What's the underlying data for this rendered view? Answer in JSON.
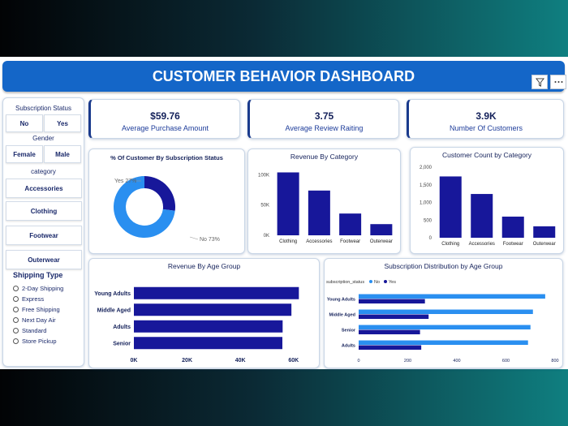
{
  "header": {
    "title": "CUSTOMER BEHAVIOR DASHBOARD",
    "filter_icon": "filter-icon",
    "more_icon": "more-icon"
  },
  "slicers": {
    "subscription_status": {
      "title": "Subscription Status",
      "options": [
        "No",
        "Yes"
      ]
    },
    "gender": {
      "title": "Gender",
      "options": [
        "Female",
        "Male"
      ]
    },
    "category": {
      "title": "category",
      "options": [
        "Accessories",
        "Clothing",
        "Footwear",
        "Outerwear"
      ]
    },
    "shipping": {
      "title": "Shipping Type",
      "options": [
        "2-Day Shipping",
        "Express",
        "Free Shipping",
        "Next Day Air",
        "Standard",
        "Store Pickup"
      ]
    }
  },
  "kpis": [
    {
      "value": "$59.76",
      "label": "Average Purchase Amount"
    },
    {
      "value": "3.75",
      "label": "Average Review Raiting"
    },
    {
      "value": "3.9K",
      "label": "Number Of Customers"
    }
  ],
  "colors": {
    "primary": "#1466c8",
    "dark_bar": "#17179a",
    "light_bar": "#2a8ff0"
  },
  "chart_data": [
    {
      "id": "subscription_donut",
      "type": "pie",
      "title": "% Of Customer By Subscription Status",
      "slices": [
        {
          "label": "Yes 27%",
          "category": "Yes",
          "value": 27,
          "color": "#17179a"
        },
        {
          "label": "No 73%",
          "category": "No",
          "value": 73,
          "color": "#2a8ff0"
        }
      ]
    },
    {
      "id": "revenue_by_category",
      "type": "bar",
      "title": "Revenue By Category",
      "categories": [
        "Clothing",
        "Accessories",
        "Footwear",
        "Outerwear"
      ],
      "values": [
        104000,
        74000,
        36000,
        18500
      ],
      "yticks": [
        "0K",
        "50K",
        "100K"
      ],
      "ytick_values": [
        0,
        50000,
        100000
      ],
      "ylim": [
        0,
        110000
      ]
    },
    {
      "id": "customer_count_by_category",
      "type": "bar",
      "title": "Customer Count by Category",
      "categories": [
        "Clothing",
        "Accessories",
        "Footwear",
        "Outerwear"
      ],
      "values": [
        1737,
        1240,
        599,
        324
      ],
      "yticks": [
        "0",
        "500",
        "1,000",
        "1,500",
        "2,000"
      ],
      "ytick_values": [
        0,
        500,
        1000,
        1500,
        2000
      ],
      "ylim": [
        0,
        2000
      ]
    },
    {
      "id": "revenue_by_age_group",
      "type": "bar",
      "orientation": "horizontal",
      "title": "Revenue By Age Group",
      "categories": [
        "Young Adults",
        "Middle Aged",
        "Adults",
        "Senior"
      ],
      "values": [
        62000,
        59200,
        55900,
        55800
      ],
      "xticks": [
        "0K",
        "20K",
        "40K",
        "60K"
      ],
      "xtick_values": [
        0,
        20000,
        40000,
        60000
      ],
      "xlim": [
        0,
        68000
      ]
    },
    {
      "id": "subscription_by_age_group",
      "type": "bar",
      "orientation": "horizontal",
      "title": "Subscription Distribution by Age Group",
      "legend_title": "subscription_status",
      "categories": [
        "Young Adults",
        "Middle Aged",
        "Senior",
        "Adults"
      ],
      "series": [
        {
          "name": "No",
          "values": [
            760,
            710,
            700,
            690
          ],
          "color": "#2a8ff0"
        },
        {
          "name": "Yes",
          "values": [
            270,
            285,
            250,
            255
          ],
          "color": "#17179a"
        }
      ],
      "xticks": [
        "0",
        "200",
        "400",
        "600",
        "800"
      ],
      "xtick_values": [
        0,
        200,
        400,
        600,
        800
      ],
      "xlim": [
        0,
        800
      ]
    }
  ]
}
